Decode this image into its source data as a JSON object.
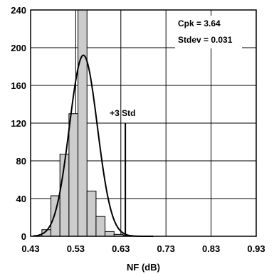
{
  "chart_data": {
    "type": "bar",
    "subtype": "histogram",
    "xlabel": "NF (dB)",
    "ylabel": "",
    "xlim": [
      0.43,
      0.93
    ],
    "ylim": [
      0,
      240
    ],
    "x_ticks": [
      0.43,
      0.53,
      0.63,
      0.73,
      0.83,
      0.93
    ],
    "x_tick_labels": [
      "0.43",
      "0.53",
      "0.63",
      "0.73",
      "0.83",
      "0.93"
    ],
    "y_ticks": [
      0,
      40,
      80,
      120,
      160,
      200,
      240
    ],
    "y_tick_labels": [
      "0",
      "40",
      "80",
      "120",
      "160",
      "200",
      "240"
    ],
    "grid": true,
    "bins": [
      {
        "start": 0.455,
        "end": 0.475,
        "value": 7
      },
      {
        "start": 0.475,
        "end": 0.495,
        "value": 43
      },
      {
        "start": 0.495,
        "end": 0.515,
        "value": 87
      },
      {
        "start": 0.515,
        "end": 0.535,
        "value": 130
      },
      {
        "start": 0.535,
        "end": 0.555,
        "value": 240
      },
      {
        "start": 0.555,
        "end": 0.575,
        "value": 48
      },
      {
        "start": 0.575,
        "end": 0.595,
        "value": 21
      },
      {
        "start": 0.595,
        "end": 0.615,
        "value": 5
      },
      {
        "start": 0.615,
        "end": 0.635,
        "value": 2
      },
      {
        "start": 0.635,
        "end": 0.655,
        "value": 1
      }
    ],
    "normal_fit": {
      "mean": 0.547,
      "stdev": 0.031,
      "peak": 192
    },
    "reference_line": {
      "x": 0.64,
      "y_top": 120,
      "label": "+3 Std"
    },
    "annotations": [
      "Cpk = 3.64",
      "Stdev = 0.031"
    ]
  }
}
